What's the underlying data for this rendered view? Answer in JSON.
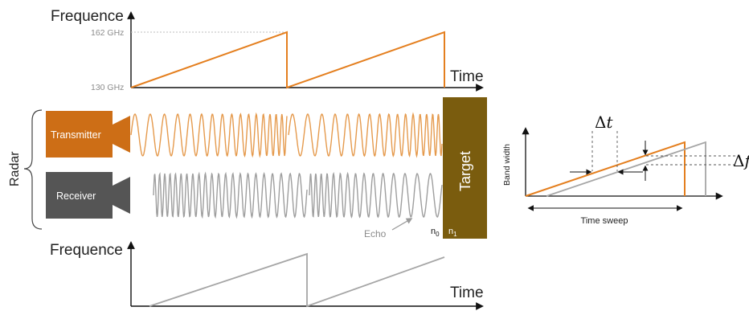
{
  "top_plot": {
    "y_axis_label": "Frequence",
    "x_axis_label": "Time",
    "tick_high": "162 GHz",
    "tick_low": "130 GHz"
  },
  "bottom_plot": {
    "y_axis_label": "Frequence",
    "x_axis_label": "Time"
  },
  "radar": {
    "group_label": "Radar",
    "transmitter_label": "Transmitter",
    "receiver_label": "Receiver",
    "echo_label": "Echo"
  },
  "target": {
    "label": "Target",
    "n0": "n",
    "n0_sub": "0",
    "n1": "n",
    "n1_sub": "1"
  },
  "inset": {
    "delta_t_symbol": "Δ",
    "delta_t_var": "t",
    "delta_f_symbol": "Δ",
    "delta_f_var": "f",
    "y_label": "Band width",
    "x_label": "Time sweep"
  },
  "colors": {
    "orange": "#E47F1F",
    "orange_dark": "#C96A10",
    "gray": "#A6A6A6",
    "gray_dark": "#555555",
    "target": "#7A5C0E",
    "axis": "#111111",
    "tick_text": "#8C8C8C"
  }
}
